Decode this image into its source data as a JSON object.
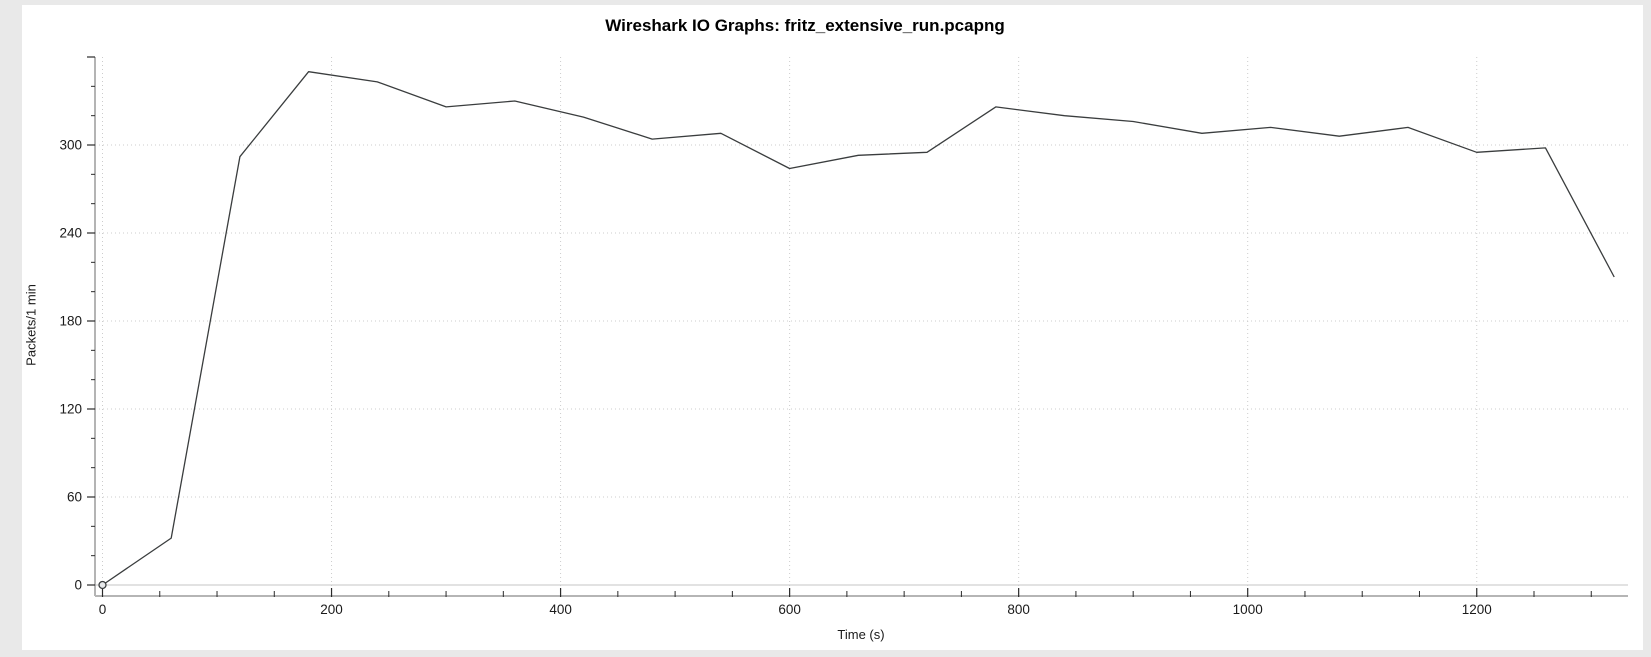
{
  "window": {
    "title": "Wireshark IO Graphs: fritz_extensive_run.pcapng"
  },
  "chart_data": {
    "type": "line",
    "title": "Wireshark IO Graphs: fritz_extensive_run.pcapng",
    "xlabel": "Time (s)",
    "ylabel": "Packets/1 min",
    "x": [
      0,
      60,
      120,
      180,
      240,
      300,
      360,
      420,
      480,
      540,
      600,
      660,
      720,
      780,
      840,
      900,
      960,
      1020,
      1080,
      1140,
      1200,
      1260,
      1320
    ],
    "series": [
      {
        "values": [
          0,
          32,
          292,
          350,
          343,
          326,
          330,
          319,
          304,
          308,
          284,
          293,
          295,
          326,
          320,
          316,
          308,
          312,
          306,
          312,
          295,
          298,
          210
        ]
      }
    ],
    "x_ticks": [
      0,
      200,
      400,
      600,
      800,
      1000,
      1200
    ],
    "y_ticks": [
      0,
      60,
      120,
      180,
      240,
      300
    ],
    "x_minor_step": 50,
    "y_minor_step": 20,
    "xlim": [
      0,
      1333
    ],
    "ylim": [
      0,
      360
    ],
    "grid": true,
    "legend": "none",
    "origin_marker": "circle",
    "colors": {
      "line": "#3a3d3e",
      "grid_dotted": "#cccccc",
      "zero_line": "#c6c6c6",
      "y_axis_line": "#8c8c8c",
      "x_axis_line": "#b5b5b5",
      "tick": "#2a2a2a",
      "text": "#1a1a1a",
      "page_background": "#e9e9e9",
      "card_background": "#ffffff",
      "marker_fill": "#e8eaec"
    }
  }
}
